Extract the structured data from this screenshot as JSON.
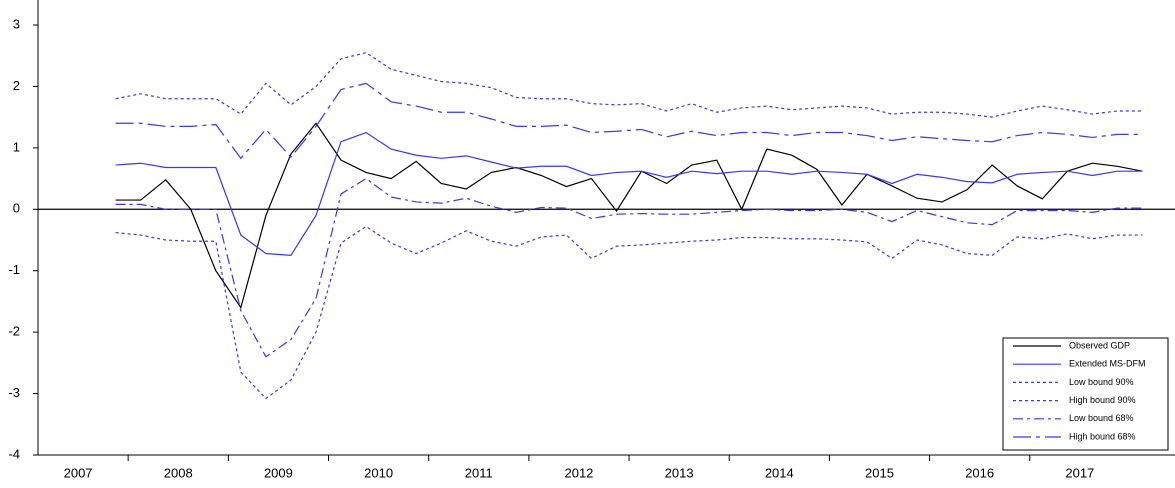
{
  "chart_data": {
    "type": "line",
    "x": [
      2007.875,
      2008.125,
      2008.375,
      2008.625,
      2008.875,
      2009.125,
      2009.375,
      2009.625,
      2009.875,
      2010.125,
      2010.375,
      2010.625,
      2010.875,
      2011.125,
      2011.375,
      2011.625,
      2011.875,
      2012.125,
      2012.375,
      2012.625,
      2012.875,
      2013.125,
      2013.375,
      2013.625,
      2013.875,
      2014.125,
      2014.375,
      2014.625,
      2014.875,
      2015.125,
      2015.375,
      2015.625,
      2015.875,
      2016.125,
      2016.375,
      2016.625,
      2016.875,
      2017.125,
      2017.375,
      2017.625,
      2017.875,
      2018.125
    ],
    "xlim": [
      2007.1,
      2018.45
    ],
    "xticks": [
      {
        "value": 2007,
        "label": "2007"
      },
      {
        "value": 2008,
        "label": "2008"
      },
      {
        "value": 2009,
        "label": "2009"
      },
      {
        "value": 2010,
        "label": "2010"
      },
      {
        "value": 2011,
        "label": "2011"
      },
      {
        "value": 2012,
        "label": "2012"
      },
      {
        "value": 2013,
        "label": "2013"
      },
      {
        "value": 2014,
        "label": "2014"
      },
      {
        "value": 2015,
        "label": "2015"
      },
      {
        "value": 2016,
        "label": "2016"
      },
      {
        "value": 2017,
        "label": "2017"
      }
    ],
    "ylim": [
      -4,
      3
    ],
    "yticks": [
      -4,
      -3,
      -2,
      -1,
      0,
      1,
      2,
      3
    ],
    "zero_line": true,
    "legend": "lower right",
    "series": [
      {
        "name": "Observed GDP",
        "color": "#000000",
        "dash": "solid",
        "values": [
          0.15,
          0.15,
          0.48,
          0,
          -1,
          -1.6,
          -0.1,
          0.9,
          1.4,
          0.8,
          0.6,
          0.5,
          0.78,
          0.42,
          0.33,
          0.6,
          0.68,
          0.55,
          0.37,
          0.5,
          -0.03,
          0.62,
          0.42,
          0.72,
          0.8,
          0,
          0.98,
          0.88,
          0.65,
          0.07,
          0.57,
          0.38,
          0.18,
          0.12,
          0.32,
          0.72,
          0.38,
          0.17,
          0.62,
          0.75,
          0.7,
          0.62
        ]
      },
      {
        "name": "Extended MS-DFM",
        "color": "#3636ff",
        "dash": "solid",
        "values": [
          0.72,
          0.75,
          0.68,
          0.68,
          0.68,
          -0.42,
          -0.72,
          -0.75,
          -0.1,
          1.1,
          1.25,
          0.98,
          0.88,
          0.83,
          0.87,
          0.77,
          0.67,
          0.7,
          0.7,
          0.55,
          0.6,
          0.62,
          0.52,
          0.62,
          0.58,
          0.62,
          0.62,
          0.57,
          0.62,
          0.6,
          0.57,
          0.42,
          0.57,
          0.52,
          0.45,
          0.43,
          0.57,
          0.6,
          0.62,
          0.55,
          0.62,
          0.62
        ]
      },
      {
        "name": "Low bound 90%",
        "color": "#3636ff",
        "dash": "dotted",
        "values": [
          -0.38,
          -0.42,
          -0.5,
          -0.52,
          -0.52,
          -2.65,
          -3.08,
          -2.78,
          -2.0,
          -0.55,
          -0.28,
          -0.55,
          -0.72,
          -0.55,
          -0.35,
          -0.52,
          -0.6,
          -0.45,
          -0.42,
          -0.8,
          -0.6,
          -0.58,
          -0.55,
          -0.52,
          -0.5,
          -0.46,
          -0.46,
          -0.48,
          -0.48,
          -0.5,
          -0.53,
          -0.8,
          -0.5,
          -0.58,
          -0.72,
          -0.75,
          -0.45,
          -0.48,
          -0.4,
          -0.48,
          -0.42,
          -0.42
        ]
      },
      {
        "name": "High bound 90%",
        "color": "#3636ff",
        "dash": "dotted",
        "values": [
          1.8,
          1.88,
          1.8,
          1.8,
          1.8,
          1.55,
          2.05,
          1.7,
          2.0,
          2.45,
          2.55,
          2.28,
          2.18,
          2.08,
          2.05,
          1.98,
          1.82,
          1.8,
          1.8,
          1.72,
          1.7,
          1.72,
          1.6,
          1.72,
          1.58,
          1.65,
          1.68,
          1.62,
          1.65,
          1.68,
          1.65,
          1.55,
          1.58,
          1.58,
          1.55,
          1.5,
          1.6,
          1.68,
          1.62,
          1.55,
          1.6,
          1.6
        ]
      },
      {
        "name": "Low bound 68%",
        "color": "#3636ff",
        "dash": "dashdot",
        "values": [
          0.08,
          0.08,
          0,
          0,
          0,
          -1.65,
          -2.4,
          -2.12,
          -1.45,
          0.25,
          0.5,
          0.2,
          0.12,
          0.1,
          0.18,
          0.05,
          -0.05,
          0.03,
          0.02,
          -0.15,
          -0.08,
          -0.07,
          -0.08,
          -0.08,
          -0.05,
          -0.02,
          0,
          -0.02,
          -0.02,
          0,
          -0.05,
          -0.2,
          -0.02,
          -0.12,
          -0.22,
          -0.25,
          -0.02,
          -0.02,
          -0.02,
          -0.05,
          0.02,
          0.02
        ]
      },
      {
        "name": "High bound 68%",
        "color": "#3636ff",
        "dash": "longdashdot",
        "values": [
          1.4,
          1.4,
          1.35,
          1.35,
          1.38,
          0.83,
          1.3,
          0.85,
          1.35,
          1.95,
          2.05,
          1.75,
          1.68,
          1.58,
          1.58,
          1.47,
          1.35,
          1.35,
          1.37,
          1.25,
          1.27,
          1.3,
          1.18,
          1.27,
          1.2,
          1.25,
          1.25,
          1.2,
          1.25,
          1.25,
          1.2,
          1.12,
          1.18,
          1.15,
          1.12,
          1.1,
          1.2,
          1.25,
          1.22,
          1.17,
          1.22,
          1.22
        ]
      }
    ]
  }
}
